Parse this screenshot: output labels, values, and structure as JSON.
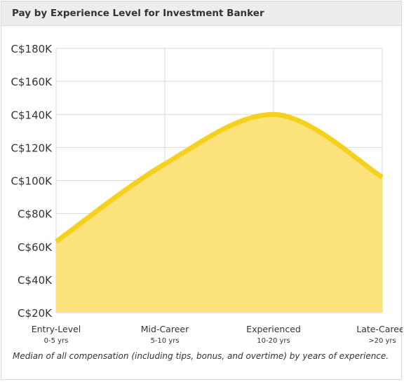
{
  "header": {
    "title": "Pay by Experience Level for Investment Banker"
  },
  "caption": "Median of all compensation (including tips, bonus, and overtime) by years of experience.",
  "colors": {
    "line": "#f5d11e",
    "fill": "#fbe27a",
    "grid": "#d9d9d9",
    "header_bg": "#ededed"
  },
  "chart_data": {
    "type": "area",
    "title": "Pay by Experience Level for Investment Banker",
    "xlabel": "",
    "ylabel": "",
    "grid": true,
    "legend": "none",
    "categories": [
      {
        "label": "Entry-Level",
        "sublabel": "0-5 yrs"
      },
      {
        "label": "Mid-Career",
        "sublabel": "5-10 yrs"
      },
      {
        "label": "Experienced",
        "sublabel": "10-20 yrs"
      },
      {
        "label": "Late-Career",
        "sublabel": ">20 yrs"
      }
    ],
    "values": [
      63000,
      110000,
      140000,
      102000
    ],
    "ylim": [
      20000,
      180000
    ],
    "yticks": [
      {
        "value": 180000,
        "label": "C$180K"
      },
      {
        "value": 160000,
        "label": "C$160K"
      },
      {
        "value": 140000,
        "label": "C$140K"
      },
      {
        "value": 120000,
        "label": "C$120K"
      },
      {
        "value": 100000,
        "label": "C$100K"
      },
      {
        "value": 80000,
        "label": "C$80K"
      },
      {
        "value": 60000,
        "label": "C$60K"
      },
      {
        "value": 40000,
        "label": "C$40K"
      },
      {
        "value": 20000,
        "label": "C$20K"
      }
    ]
  }
}
